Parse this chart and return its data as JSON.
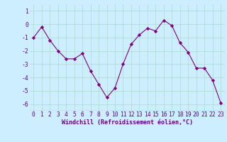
{
  "x": [
    0,
    1,
    2,
    3,
    4,
    5,
    6,
    7,
    8,
    9,
    10,
    11,
    12,
    13,
    14,
    15,
    16,
    17,
    18,
    19,
    20,
    21,
    22,
    23
  ],
  "y": [
    -1.0,
    -0.2,
    -1.2,
    -2.0,
    -2.6,
    -2.6,
    -2.2,
    -3.5,
    -4.5,
    -5.5,
    -4.8,
    -3.0,
    -1.5,
    -0.8,
    -0.3,
    -0.5,
    0.3,
    -0.1,
    -1.4,
    -2.1,
    -3.3,
    -3.3,
    -4.2,
    -5.9
  ],
  "ylim": [
    -6.5,
    1.5
  ],
  "yticks": [
    1,
    0,
    -1,
    -2,
    -3,
    -4,
    -5,
    -6
  ],
  "xticks": [
    0,
    1,
    2,
    3,
    4,
    5,
    6,
    7,
    8,
    9,
    10,
    11,
    12,
    13,
    14,
    15,
    16,
    17,
    18,
    19,
    20,
    21,
    22,
    23
  ],
  "xlabel": "Windchill (Refroidissement éolien,°C)",
  "line_color": "#800080",
  "marker": "D",
  "marker_size": 2.2,
  "bg_color": "#cceeff",
  "grid_color": "#aaddcc",
  "tick_label_color": "#660088",
  "xlabel_color": "#660088",
  "xlabel_fontsize": 6.0,
  "tick_fontsize": 5.8,
  "xlim_min": -0.5,
  "xlim_max": 23.5
}
